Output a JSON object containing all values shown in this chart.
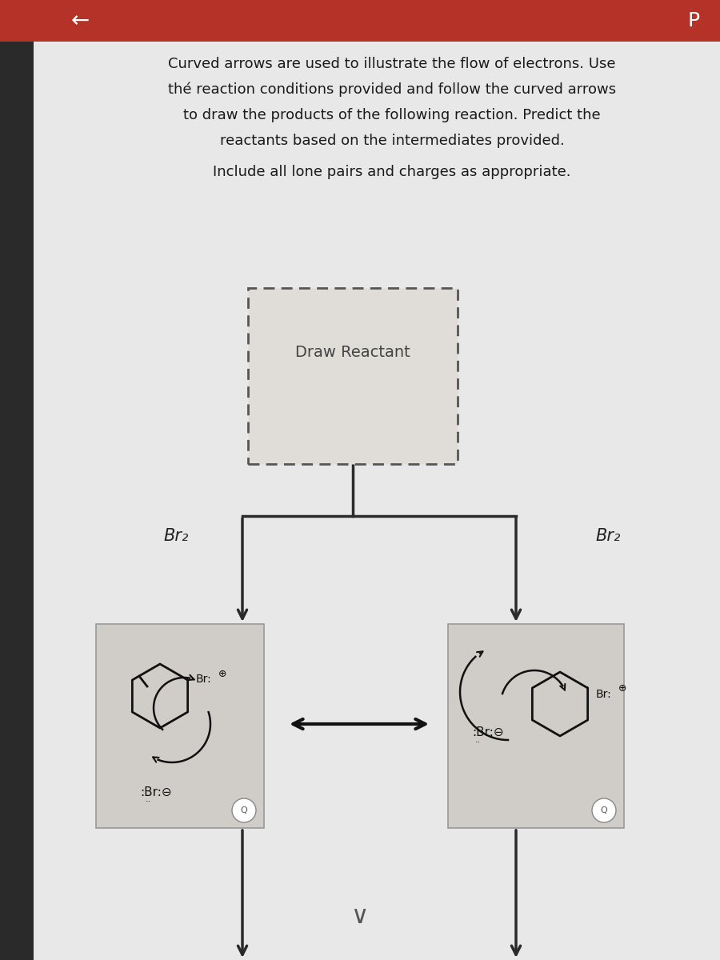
{
  "bg_color": "#d8d8d8",
  "content_bg": "#e8e8e8",
  "header_color": "#b53228",
  "sidebar_color": "#2a2a2a",
  "title_lines": [
    "Curved arrows are used to illustrate the flow of electrons. Use",
    "thé reaction conditions provided and follow the curved arrows",
    "to draw the products of the following reaction. Predict the",
    "reactants based on the intermediates provided."
  ],
  "subtitle": "Include all lone pairs and charges as appropriate.",
  "draw_reactant_label": "Draw Reactant",
  "br2_left": "Br₂",
  "br2_right": "Br₂",
  "arrow_color": "#2a2a2a",
  "box_edge_color": "#999999",
  "box_face_color": "#d0cdc8"
}
